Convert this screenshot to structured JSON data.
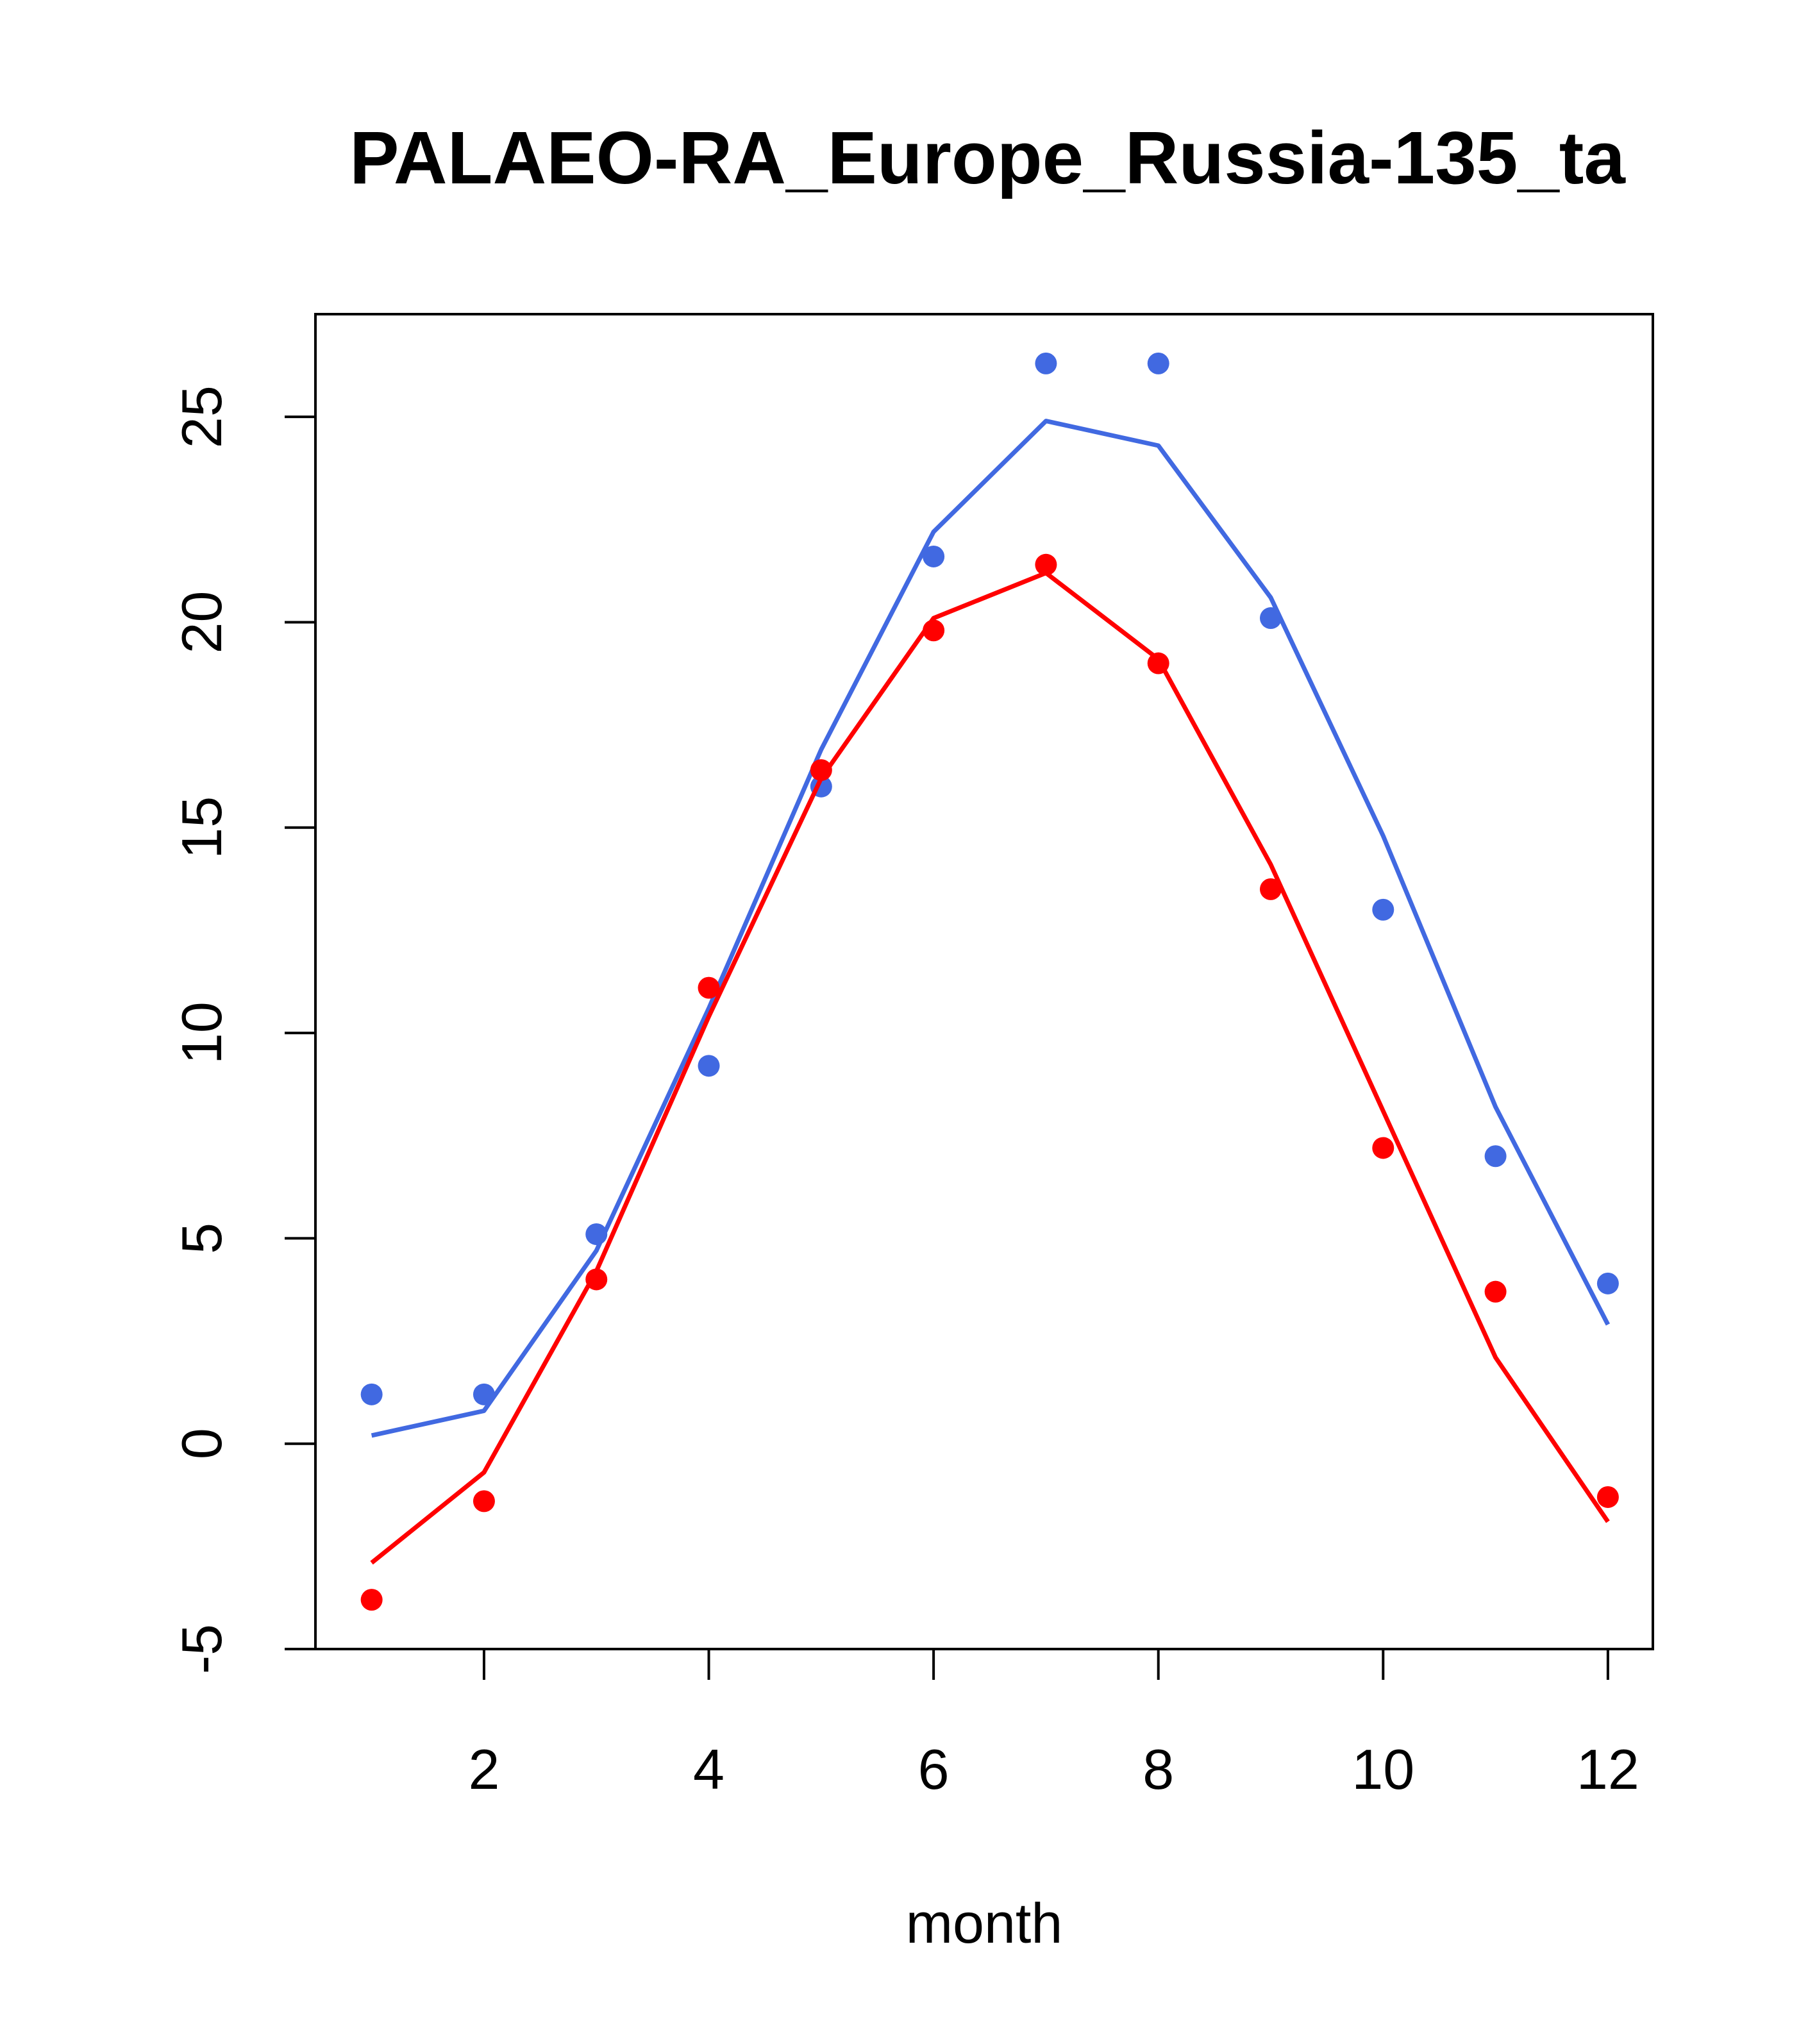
{
  "chart_data": {
    "type": "line",
    "title": "PALAEO-RA_Europe_Russia-135_ta",
    "xlabel": "month",
    "ylabel": "",
    "xlim": [
      0.5,
      12.4
    ],
    "ylim": [
      -5,
      27.5
    ],
    "x_ticks": [
      2,
      4,
      6,
      8,
      10,
      12
    ],
    "y_ticks": [
      -5,
      0,
      5,
      10,
      15,
      20,
      25
    ],
    "x_tick_labels": [
      "2",
      "4",
      "6",
      "8",
      "10",
      "12"
    ],
    "y_tick_labels": [
      "-5",
      "0",
      "5",
      "10",
      "15",
      "20",
      "25"
    ],
    "grid": false,
    "x": [
      1,
      2,
      3,
      4,
      5,
      6,
      7,
      8,
      9,
      10,
      11,
      12
    ],
    "series": [
      {
        "color": "#4169E1",
        "points": [
          1.2,
          1.2,
          5.1,
          9.2,
          16.0,
          21.6,
          26.3,
          26.3,
          20.1,
          13.0,
          7.0,
          3.9
        ],
        "line": [
          0.2,
          0.8,
          4.7,
          10.6,
          16.9,
          22.2,
          24.9,
          24.3,
          20.6,
          14.8,
          8.2,
          2.9
        ]
      },
      {
        "color": "#FF0000",
        "points": [
          -3.8,
          -1.4,
          4.0,
          11.1,
          16.4,
          19.8,
          21.4,
          19.0,
          13.5,
          7.2,
          3.7,
          -1.3
        ],
        "line": [
          -2.9,
          -0.7,
          4.2,
          10.4,
          16.2,
          20.1,
          21.2,
          19.1,
          14.1,
          8.1,
          2.1,
          -1.9
        ]
      }
    ]
  }
}
